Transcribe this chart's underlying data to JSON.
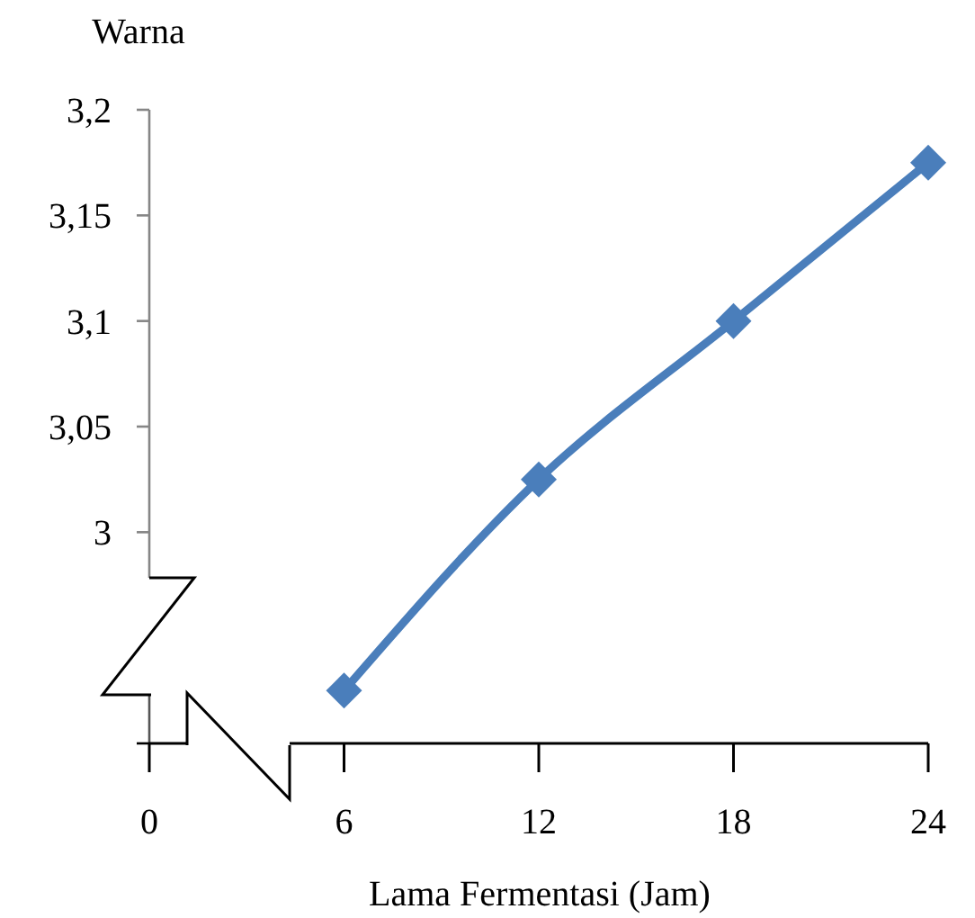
{
  "chart_data": {
    "type": "line",
    "ylabel": "Warna",
    "xlabel": "Lama Fermentasi (Jam)",
    "x": [
      6,
      12,
      18,
      24
    ],
    "series": [
      {
        "color": "#4a7ebb",
        "values": [
          2.925,
          3.025,
          3.1,
          3.175
        ]
      }
    ],
    "xlim": [
      0,
      24
    ],
    "xticks": [
      0,
      6,
      12,
      18,
      24
    ],
    "ylim": [
      2.9,
      3.2
    ],
    "yticks": [
      {
        "value": 2.9,
        "label": null
      },
      {
        "value": 3,
        "label": "3"
      },
      {
        "value": 3.05,
        "label": "3,05"
      },
      {
        "value": 3.1,
        "label": "3,1"
      },
      {
        "value": 3.15,
        "label": "3,15"
      },
      {
        "value": 3.2,
        "label": "3,2"
      }
    ],
    "marker": "diamond",
    "line_style": "solid",
    "grid": false
  }
}
